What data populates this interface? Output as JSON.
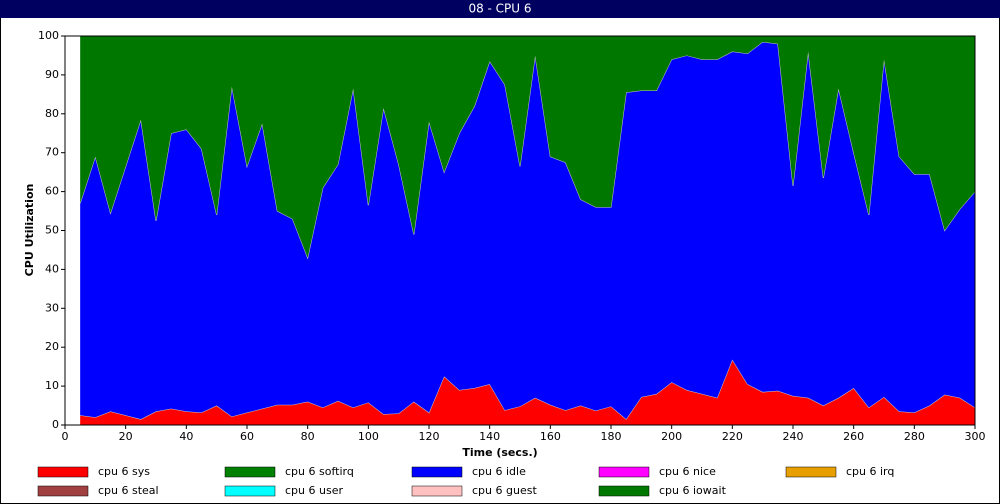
{
  "chart_data": {
    "type": "area",
    "stacked": true,
    "title": "08 - CPU 6",
    "xlabel": "Time (secs.)",
    "ylabel": "CPU Utilization",
    "x": [
      5,
      10,
      15,
      20,
      25,
      30,
      35,
      40,
      45,
      50,
      55,
      60,
      65,
      70,
      75,
      80,
      85,
      90,
      95,
      100,
      105,
      110,
      115,
      120,
      125,
      130,
      135,
      140,
      145,
      150,
      155,
      160,
      165,
      170,
      175,
      180,
      185,
      190,
      195,
      200,
      205,
      210,
      215,
      220,
      225,
      230,
      235,
      240,
      245,
      250,
      255,
      260,
      265,
      270,
      275,
      280,
      285,
      290,
      295,
      300
    ],
    "xlim": [
      0,
      300
    ],
    "ylim": [
      0,
      100
    ],
    "xticks": [
      0,
      20,
      40,
      60,
      80,
      100,
      120,
      140,
      160,
      180,
      200,
      220,
      240,
      260,
      280,
      300
    ],
    "yticks": [
      0,
      10,
      20,
      30,
      40,
      50,
      60,
      70,
      80,
      90,
      100
    ],
    "series": [
      {
        "name": "cpu 6 sys",
        "color": "#ff0000",
        "values": [
          2.5,
          2,
          3.5,
          2.5,
          1.5,
          3.5,
          4.2,
          3.5,
          3.2,
          5,
          2.2,
          3.2,
          4.2,
          5.2,
          5.2,
          6,
          4.5,
          6.2,
          4.5,
          5.8,
          2.8,
          3,
          6,
          3.2,
          12.5,
          9,
          9.5,
          10.5,
          3.8,
          4.8,
          7,
          5.2,
          3.8,
          5,
          3.7,
          4.8,
          1.5,
          7.2,
          8,
          11,
          9,
          8,
          7,
          16.8,
          10.5,
          8.5,
          8.8,
          7.5,
          7,
          5,
          7,
          9.5,
          4.5,
          7.2,
          3.5,
          3.2,
          5,
          7.8,
          7,
          4.5
        ]
      },
      {
        "name": "cpu 6 softirq",
        "color": "#008000",
        "values": [
          0,
          0,
          0,
          0,
          0,
          0,
          0,
          0,
          0,
          0,
          0,
          0,
          0,
          0,
          0,
          0,
          0,
          0,
          0,
          0,
          0,
          0,
          0,
          0,
          0,
          0,
          0,
          0,
          0,
          0,
          0,
          0,
          0,
          0,
          0,
          0,
          0,
          0,
          0,
          0,
          0,
          0,
          0,
          0,
          0,
          0,
          0,
          0,
          0,
          0,
          0,
          0,
          0,
          0,
          0,
          0,
          0,
          0,
          0,
          0
        ]
      },
      {
        "name": "cpu 6 idle",
        "color": "#0000ff",
        "values": [
          54.5,
          67,
          51,
          64,
          77,
          49,
          70.8,
          72.5,
          67.8,
          49,
          84.8,
          63.3,
          73.3,
          49.8,
          47.8,
          37,
          56.5,
          60.8,
          82,
          50.7,
          78.7,
          64,
          43,
          74.8,
          52.5,
          66,
          72.5,
          83,
          83.7,
          61.7,
          88,
          63.8,
          63.7,
          53,
          52.3,
          51.2,
          84,
          78.8,
          78,
          83,
          86,
          86,
          87,
          79.2,
          85,
          90,
          89.2,
          54,
          89,
          58.5,
          79.5,
          60.5,
          49.5,
          86.8,
          65.5,
          61.3,
          59.5,
          42.2,
          48.5,
          55.5
        ]
      },
      {
        "name": "cpu 6 nice",
        "color": "#ff00ff",
        "values": [
          0,
          0,
          0,
          0,
          0,
          0,
          0,
          0,
          0,
          0,
          0,
          0,
          0,
          0,
          0,
          0,
          0,
          0,
          0,
          0,
          0,
          0,
          0,
          0,
          0,
          0,
          0,
          0,
          0,
          0,
          0,
          0,
          0,
          0,
          0,
          0,
          0,
          0,
          0,
          0,
          0,
          0,
          0,
          0,
          0,
          0,
          0,
          0,
          0,
          0,
          0,
          0,
          0,
          0,
          0,
          0,
          0,
          0,
          0,
          0
        ]
      },
      {
        "name": "cpu 6 irq",
        "color": "#e8a000",
        "values": [
          0,
          0,
          0,
          0,
          0,
          0,
          0,
          0,
          0,
          0,
          0,
          0,
          0,
          0,
          0,
          0,
          0,
          0,
          0,
          0,
          0,
          0,
          0,
          0,
          0,
          0,
          0,
          0,
          0,
          0,
          0,
          0,
          0,
          0,
          0,
          0,
          0,
          0,
          0,
          0,
          0,
          0,
          0,
          0,
          0,
          0,
          0,
          0,
          0,
          0,
          0,
          0,
          0,
          0,
          0,
          0,
          0,
          0,
          0,
          0
        ]
      },
      {
        "name": "cpu 6 steal",
        "color": "#a04040",
        "values": [
          0,
          0,
          0,
          0,
          0,
          0,
          0,
          0,
          0,
          0,
          0,
          0,
          0,
          0,
          0,
          0,
          0,
          0,
          0,
          0,
          0,
          0,
          0,
          0,
          0,
          0,
          0,
          0,
          0,
          0,
          0,
          0,
          0,
          0,
          0,
          0,
          0,
          0,
          0,
          0,
          0,
          0,
          0,
          0,
          0,
          0,
          0,
          0,
          0,
          0,
          0,
          0,
          0,
          0,
          0,
          0,
          0,
          0,
          0,
          0
        ]
      },
      {
        "name": "cpu 6 user",
        "color": "#00ffff",
        "values": [
          0,
          0,
          0,
          0,
          0,
          0,
          0,
          0,
          0,
          0,
          0,
          0,
          0,
          0,
          0,
          0,
          0,
          0,
          0,
          0,
          0,
          0,
          0,
          0,
          0,
          0,
          0,
          0,
          0,
          0,
          0,
          0,
          0,
          0,
          0,
          0,
          0,
          0,
          0,
          0,
          0,
          0,
          0,
          0,
          0,
          0,
          0,
          0,
          0,
          0,
          0,
          0,
          0,
          0,
          0,
          0,
          0,
          0,
          0,
          0
        ]
      },
      {
        "name": "cpu 6 guest",
        "color": "#ffc0c0",
        "values": [
          0,
          0,
          0,
          0,
          0,
          0,
          0,
          0,
          0,
          0,
          0,
          0,
          0,
          0,
          0,
          0,
          0,
          0,
          0,
          0,
          0,
          0,
          0,
          0,
          0,
          0,
          0,
          0,
          0,
          0,
          0,
          0,
          0,
          0,
          0,
          0,
          0,
          0,
          0,
          0,
          0,
          0,
          0,
          0,
          0,
          0,
          0,
          0,
          0,
          0,
          0,
          0,
          0,
          0,
          0,
          0,
          0,
          0,
          0,
          0
        ]
      },
      {
        "name": "cpu 6 iowait",
        "color": "#007800",
        "values": [
          43,
          31,
          45.5,
          33.5,
          21.5,
          47.5,
          25,
          24,
          29,
          46,
          13,
          33.5,
          22.5,
          45,
          47,
          57,
          39,
          33,
          13.5,
          43.5,
          18.5,
          33,
          51,
          22,
          35,
          25,
          18,
          6.5,
          12.5,
          33.5,
          5,
          31,
          32.5,
          42,
          44,
          44,
          14.5,
          14,
          14,
          6,
          5,
          6,
          6,
          4,
          4.5,
          1.5,
          2,
          38.5,
          4,
          36.5,
          13.5,
          30,
          46,
          6,
          31,
          35.5,
          35.5,
          50,
          44.5,
          40
        ]
      }
    ]
  }
}
